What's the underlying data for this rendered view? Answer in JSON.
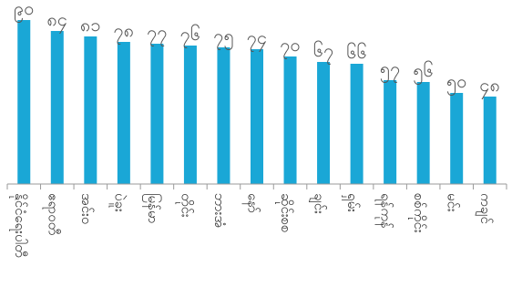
{
  "chart_data": {
    "type": "bar",
    "categories": [
      "နိုင်ငံရေးပါတီ",
      "ဧရာဝတီ",
      "အင်းဝ",
      "ပဲခူး",
      "မြန်မာ",
      "တိုင်း",
      "ဘားအံ",
      "နော်",
      "ဆိုင်းစစ",
      "ချင်း",
      "ရှမ်း",
      "ရန်ကုန်",
      "စစ်ကိုင်း",
      "မင်း",
      "ကချင်"
    ],
    "values": [
      90,
      84,
      81,
      78,
      77,
      76,
      75,
      74,
      70,
      67,
      66,
      57,
      56,
      50,
      48
    ],
    "value_labels": [
      "၉၀",
      "၈၄",
      "၈၁",
      "၇၈",
      "၇၇",
      "၇၆",
      "၇၅",
      "၇၄",
      "၇၀",
      "၆၇",
      "၆၆",
      "၅၇",
      "၅၆",
      "၅၀",
      "၄၈"
    ],
    "ylim": [
      0,
      100
    ],
    "grid": false,
    "colors": {
      "bar": "#1aa7d6",
      "axis": "#9a9a9a"
    }
  }
}
